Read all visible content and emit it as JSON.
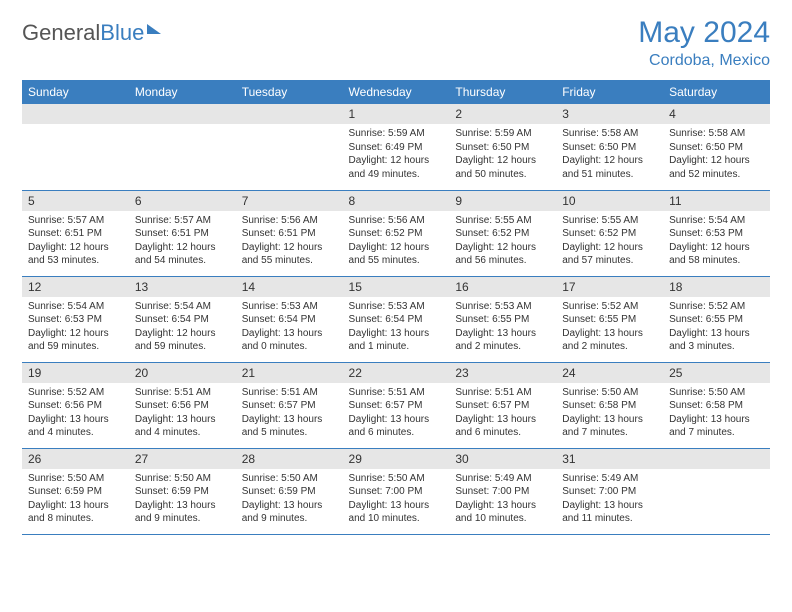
{
  "logo": {
    "part1": "General",
    "part2": "Blue"
  },
  "title": "May 2024",
  "location": "Cordoba, Mexico",
  "day_headers": [
    "Sunday",
    "Monday",
    "Tuesday",
    "Wednesday",
    "Thursday",
    "Friday",
    "Saturday"
  ],
  "colors": {
    "accent": "#3a7ebf",
    "header_bg": "#3a7ebf",
    "daynum_bg": "#e6e6e6",
    "text": "#333333"
  },
  "weeks": [
    [
      null,
      null,
      null,
      {
        "d": "1",
        "sr": "5:59 AM",
        "ss": "6:49 PM",
        "dl": "12 hours and 49 minutes."
      },
      {
        "d": "2",
        "sr": "5:59 AM",
        "ss": "6:50 PM",
        "dl": "12 hours and 50 minutes."
      },
      {
        "d": "3",
        "sr": "5:58 AM",
        "ss": "6:50 PM",
        "dl": "12 hours and 51 minutes."
      },
      {
        "d": "4",
        "sr": "5:58 AM",
        "ss": "6:50 PM",
        "dl": "12 hours and 52 minutes."
      }
    ],
    [
      {
        "d": "5",
        "sr": "5:57 AM",
        "ss": "6:51 PM",
        "dl": "12 hours and 53 minutes."
      },
      {
        "d": "6",
        "sr": "5:57 AM",
        "ss": "6:51 PM",
        "dl": "12 hours and 54 minutes."
      },
      {
        "d": "7",
        "sr": "5:56 AM",
        "ss": "6:51 PM",
        "dl": "12 hours and 55 minutes."
      },
      {
        "d": "8",
        "sr": "5:56 AM",
        "ss": "6:52 PM",
        "dl": "12 hours and 55 minutes."
      },
      {
        "d": "9",
        "sr": "5:55 AM",
        "ss": "6:52 PM",
        "dl": "12 hours and 56 minutes."
      },
      {
        "d": "10",
        "sr": "5:55 AM",
        "ss": "6:52 PM",
        "dl": "12 hours and 57 minutes."
      },
      {
        "d": "11",
        "sr": "5:54 AM",
        "ss": "6:53 PM",
        "dl": "12 hours and 58 minutes."
      }
    ],
    [
      {
        "d": "12",
        "sr": "5:54 AM",
        "ss": "6:53 PM",
        "dl": "12 hours and 59 minutes."
      },
      {
        "d": "13",
        "sr": "5:54 AM",
        "ss": "6:54 PM",
        "dl": "12 hours and 59 minutes."
      },
      {
        "d": "14",
        "sr": "5:53 AM",
        "ss": "6:54 PM",
        "dl": "13 hours and 0 minutes."
      },
      {
        "d": "15",
        "sr": "5:53 AM",
        "ss": "6:54 PM",
        "dl": "13 hours and 1 minute."
      },
      {
        "d": "16",
        "sr": "5:53 AM",
        "ss": "6:55 PM",
        "dl": "13 hours and 2 minutes."
      },
      {
        "d": "17",
        "sr": "5:52 AM",
        "ss": "6:55 PM",
        "dl": "13 hours and 2 minutes."
      },
      {
        "d": "18",
        "sr": "5:52 AM",
        "ss": "6:55 PM",
        "dl": "13 hours and 3 minutes."
      }
    ],
    [
      {
        "d": "19",
        "sr": "5:52 AM",
        "ss": "6:56 PM",
        "dl": "13 hours and 4 minutes."
      },
      {
        "d": "20",
        "sr": "5:51 AM",
        "ss": "6:56 PM",
        "dl": "13 hours and 4 minutes."
      },
      {
        "d": "21",
        "sr": "5:51 AM",
        "ss": "6:57 PM",
        "dl": "13 hours and 5 minutes."
      },
      {
        "d": "22",
        "sr": "5:51 AM",
        "ss": "6:57 PM",
        "dl": "13 hours and 6 minutes."
      },
      {
        "d": "23",
        "sr": "5:51 AM",
        "ss": "6:57 PM",
        "dl": "13 hours and 6 minutes."
      },
      {
        "d": "24",
        "sr": "5:50 AM",
        "ss": "6:58 PM",
        "dl": "13 hours and 7 minutes."
      },
      {
        "d": "25",
        "sr": "5:50 AM",
        "ss": "6:58 PM",
        "dl": "13 hours and 7 minutes."
      }
    ],
    [
      {
        "d": "26",
        "sr": "5:50 AM",
        "ss": "6:59 PM",
        "dl": "13 hours and 8 minutes."
      },
      {
        "d": "27",
        "sr": "5:50 AM",
        "ss": "6:59 PM",
        "dl": "13 hours and 9 minutes."
      },
      {
        "d": "28",
        "sr": "5:50 AM",
        "ss": "6:59 PM",
        "dl": "13 hours and 9 minutes."
      },
      {
        "d": "29",
        "sr": "5:50 AM",
        "ss": "7:00 PM",
        "dl": "13 hours and 10 minutes."
      },
      {
        "d": "30",
        "sr": "5:49 AM",
        "ss": "7:00 PM",
        "dl": "13 hours and 10 minutes."
      },
      {
        "d": "31",
        "sr": "5:49 AM",
        "ss": "7:00 PM",
        "dl": "13 hours and 11 minutes."
      },
      null
    ]
  ],
  "labels": {
    "sunrise": "Sunrise: ",
    "sunset": "Sunset: ",
    "daylight": "Daylight: "
  }
}
